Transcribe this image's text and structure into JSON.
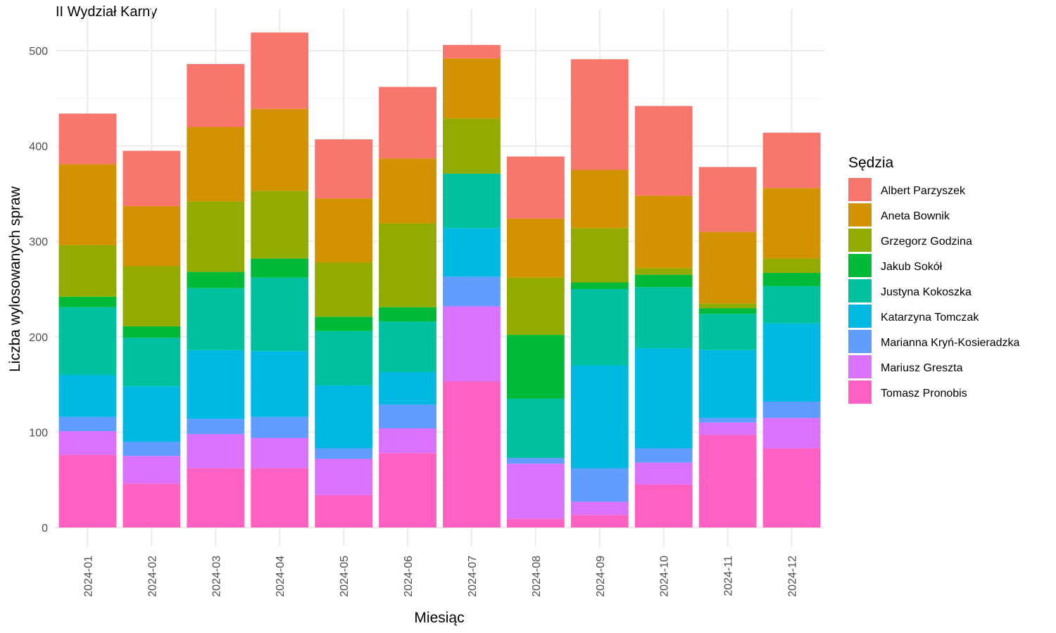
{
  "chart_data": {
    "type": "bar",
    "stacked": true,
    "title": "II Wydział Karny",
    "xlabel": "Miesiąc",
    "ylabel": "Liczba wylosowanych spraw",
    "ylim": [
      0,
      530
    ],
    "yticks": [
      0,
      100,
      200,
      300,
      400,
      500
    ],
    "grid": true,
    "legend_title": "Sędzia",
    "legend_position": "right",
    "categories": [
      "2024-01",
      "2024-02",
      "2024-03",
      "2024-04",
      "2024-05",
      "2024-06",
      "2024-07",
      "2024-08",
      "2024-09",
      "2024-10",
      "2024-11",
      "2024-12"
    ],
    "series": [
      {
        "name": "Albert Parzyszek",
        "color": "#F8766D",
        "values": [
          53,
          58,
          66,
          80,
          62,
          75,
          14,
          65,
          116,
          94,
          68,
          58
        ]
      },
      {
        "name": "Aneta Bownik",
        "color": "#D39200",
        "values": [
          85,
          63,
          78,
          86,
          67,
          68,
          63,
          62,
          61,
          76,
          75,
          74
        ]
      },
      {
        "name": "Grzegorz Godzina",
        "color": "#93AA00",
        "values": [
          54,
          63,
          74,
          71,
          57,
          88,
          58,
          60,
          57,
          7,
          5,
          15
        ]
      },
      {
        "name": "Jakub Sokół",
        "color": "#00BA38",
        "values": [
          11,
          12,
          17,
          20,
          15,
          15,
          0,
          67,
          7,
          13,
          6,
          14
        ]
      },
      {
        "name": "Justyna Kokoszka",
        "color": "#00C19F",
        "values": [
          71,
          51,
          65,
          77,
          57,
          53,
          57,
          62,
          80,
          64,
          38,
          39
        ]
      },
      {
        "name": "Katarzyna Tomczak",
        "color": "#00B9E3",
        "values": [
          44,
          58,
          72,
          69,
          66,
          34,
          51,
          0,
          108,
          105,
          71,
          82
        ]
      },
      {
        "name": "Marianna Kryń-Kosieradzka",
        "color": "#619CFF",
        "values": [
          15,
          15,
          16,
          22,
          11,
          25,
          31,
          6,
          35,
          15,
          5,
          17
        ]
      },
      {
        "name": "Mariusz Greszta",
        "color": "#DB72FB",
        "values": [
          25,
          29,
          36,
          32,
          38,
          26,
          79,
          58,
          14,
          23,
          13,
          32
        ]
      },
      {
        "name": "Tomasz Pronobis",
        "color": "#FF61C3",
        "values": [
          76,
          46,
          62,
          62,
          34,
          78,
          153,
          9,
          13,
          45,
          97,
          83
        ]
      }
    ]
  }
}
